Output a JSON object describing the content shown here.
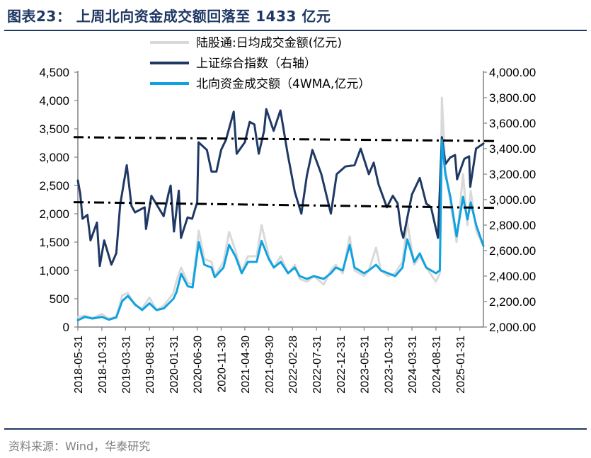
{
  "figure": {
    "title": "图表23：  上周北向资金成交额回落至 1433 亿元",
    "source": "资料来源：Wind，华泰研究"
  },
  "chart_data": {
    "type": "line",
    "x_tick_labels": [
      "2018-05-31",
      "2018-10-31",
      "2019-03-31",
      "2019-08-31",
      "2020-01-31",
      "2020-06-30",
      "2020-11-30",
      "2021-04-30",
      "2021-09-30",
      "2022-02-28",
      "2022-07-31",
      "2022-12-31",
      "2023-05-31",
      "2023-10-31",
      "2024-03-31",
      "2024-08-31",
      "2025-01-31"
    ],
    "x_range": [
      "2018-05-31",
      "2025-06-30"
    ],
    "y_left": {
      "range": [
        0,
        4500
      ],
      "tick_labels": [
        "0",
        "500",
        "1,000",
        "1,500",
        "2,000",
        "2,500",
        "3,000",
        "3,500",
        "4,000",
        "4,500"
      ]
    },
    "y_right": {
      "range": [
        2000,
        4000
      ],
      "tick_labels": [
        "2,000.00",
        "2,200.00",
        "2,400.00",
        "2,600.00",
        "2,800.00",
        "3,000.00",
        "3,200.00",
        "3,400.00",
        "3,600.00",
        "3,800.00",
        "4,000.00"
      ]
    },
    "legend_position": "top-right",
    "grid": false,
    "series": [
      {
        "name": "陆股通:日均成交金额(亿元)",
        "axis": "left",
        "color": "#d9d9d9",
        "width": 3,
        "points": [
          [
            "2018-05-31",
            180
          ],
          [
            "2018-07-15",
            200
          ],
          [
            "2018-09-01",
            160
          ],
          [
            "2018-10-31",
            230
          ],
          [
            "2018-12-15",
            150
          ],
          [
            "2019-01-31",
            180
          ],
          [
            "2019-03-10",
            560
          ],
          [
            "2019-04-15",
            600
          ],
          [
            "2019-05-31",
            380
          ],
          [
            "2019-07-15",
            330
          ],
          [
            "2019-08-31",
            520
          ],
          [
            "2019-10-15",
            300
          ],
          [
            "2019-12-01",
            380
          ],
          [
            "2020-01-31",
            600
          ],
          [
            "2020-02-20",
            820
          ],
          [
            "2020-03-20",
            1050
          ],
          [
            "2020-05-01",
            780
          ],
          [
            "2020-06-01",
            750
          ],
          [
            "2020-07-10",
            1700
          ],
          [
            "2020-08-15",
            1200
          ],
          [
            "2020-09-30",
            1150
          ],
          [
            "2020-10-20",
            900
          ],
          [
            "2020-12-15",
            1150
          ],
          [
            "2021-01-20",
            1680
          ],
          [
            "2021-03-01",
            1350
          ],
          [
            "2021-04-10",
            980
          ],
          [
            "2021-05-20",
            1250
          ],
          [
            "2021-07-15",
            1250
          ],
          [
            "2021-08-15",
            1800
          ],
          [
            "2021-09-30",
            1250
          ],
          [
            "2021-11-01",
            1050
          ],
          [
            "2021-12-15",
            1250
          ],
          [
            "2022-01-31",
            950
          ],
          [
            "2022-03-15",
            1100
          ],
          [
            "2022-04-15",
            850
          ],
          [
            "2022-05-31",
            800
          ],
          [
            "2022-07-15",
            900
          ],
          [
            "2022-09-15",
            750
          ],
          [
            "2022-10-31",
            1000
          ],
          [
            "2022-12-01",
            1100
          ],
          [
            "2023-01-15",
            950
          ],
          [
            "2023-02-28",
            1600
          ],
          [
            "2023-03-31",
            1000
          ],
          [
            "2023-05-31",
            900
          ],
          [
            "2023-06-30",
            1000
          ],
          [
            "2023-08-15",
            1400
          ],
          [
            "2023-09-15",
            1000
          ],
          [
            "2023-10-31",
            900
          ],
          [
            "2023-12-15",
            950
          ],
          [
            "2024-01-31",
            1150
          ],
          [
            "2024-03-01",
            1850
          ],
          [
            "2024-04-15",
            1100
          ],
          [
            "2024-05-20",
            1250
          ],
          [
            "2024-06-30",
            1050
          ],
          [
            "2024-08-31",
            800
          ],
          [
            "2024-09-25",
            950
          ],
          [
            "2024-10-08",
            4050
          ],
          [
            "2024-10-30",
            2800
          ],
          [
            "2024-12-01",
            2200
          ],
          [
            "2025-01-10",
            1500
          ],
          [
            "2025-02-20",
            2700
          ],
          [
            "2025-03-20",
            1800
          ],
          [
            "2025-04-10",
            2400
          ],
          [
            "2025-05-15",
            1700
          ],
          [
            "2025-06-30",
            1433
          ]
        ]
      },
      {
        "name": "上证综合指数（右轴）",
        "axis": "right",
        "color": "#1f3864",
        "width": 3,
        "points": [
          [
            "2018-05-31",
            3150
          ],
          [
            "2018-06-15",
            3050
          ],
          [
            "2018-06-30",
            2850
          ],
          [
            "2018-07-31",
            2880
          ],
          [
            "2018-08-20",
            2680
          ],
          [
            "2018-09-30",
            2820
          ],
          [
            "2018-10-18",
            2480
          ],
          [
            "2018-11-15",
            2680
          ],
          [
            "2018-12-31",
            2490
          ],
          [
            "2019-01-31",
            2580
          ],
          [
            "2019-02-25",
            2960
          ],
          [
            "2019-04-08",
            3270
          ],
          [
            "2019-05-08",
            2950
          ],
          [
            "2019-05-31",
            2900
          ],
          [
            "2019-07-31",
            2940
          ],
          [
            "2019-08-09",
            2770
          ],
          [
            "2019-09-12",
            3030
          ],
          [
            "2019-10-31",
            2930
          ],
          [
            "2019-11-29",
            2870
          ],
          [
            "2019-12-31",
            3050
          ],
          [
            "2020-01-13",
            3110
          ],
          [
            "2020-02-03",
            2750
          ],
          [
            "2020-03-05",
            3070
          ],
          [
            "2020-03-19",
            2700
          ],
          [
            "2020-04-30",
            2860
          ],
          [
            "2020-05-29",
            2850
          ],
          [
            "2020-06-30",
            2980
          ],
          [
            "2020-07-09",
            3450
          ],
          [
            "2020-08-31",
            3390
          ],
          [
            "2020-09-30",
            3220
          ],
          [
            "2020-10-31",
            3220
          ],
          [
            "2020-11-30",
            3390
          ],
          [
            "2020-12-31",
            3470
          ],
          [
            "2021-02-18",
            3690
          ],
          [
            "2021-03-09",
            3360
          ],
          [
            "2021-04-30",
            3450
          ],
          [
            "2021-05-31",
            3610
          ],
          [
            "2021-06-30",
            3590
          ],
          [
            "2021-07-28",
            3360
          ],
          [
            "2021-08-31",
            3540
          ],
          [
            "2021-09-14",
            3710
          ],
          [
            "2021-10-31",
            3540
          ],
          [
            "2021-12-13",
            3700
          ],
          [
            "2022-01-28",
            3360
          ],
          [
            "2022-03-15",
            3060
          ],
          [
            "2022-04-26",
            2890
          ],
          [
            "2022-05-31",
            3190
          ],
          [
            "2022-07-05",
            3390
          ],
          [
            "2022-08-31",
            3200
          ],
          [
            "2022-10-31",
            2890
          ],
          [
            "2022-12-07",
            3200
          ],
          [
            "2023-01-31",
            3260
          ],
          [
            "2023-03-31",
            3270
          ],
          [
            "2023-05-09",
            3400
          ],
          [
            "2023-06-30",
            3200
          ],
          [
            "2023-07-31",
            3290
          ],
          [
            "2023-08-31",
            3120
          ],
          [
            "2023-10-23",
            2940
          ],
          [
            "2023-11-30",
            3030
          ],
          [
            "2023-12-31",
            2970
          ],
          [
            "2024-01-22",
            2760
          ],
          [
            "2024-02-05",
            2700
          ],
          [
            "2024-03-31",
            3040
          ],
          [
            "2024-05-20",
            3170
          ],
          [
            "2024-06-30",
            2970
          ],
          [
            "2024-07-31",
            2940
          ],
          [
            "2024-09-13",
            2700
          ],
          [
            "2024-10-08",
            3490
          ],
          [
            "2024-10-31",
            3280
          ],
          [
            "2024-11-30",
            3330
          ],
          [
            "2024-12-31",
            3350
          ],
          [
            "2025-01-13",
            3160
          ],
          [
            "2025-02-28",
            3320
          ],
          [
            "2025-03-31",
            3340
          ],
          [
            "2025-04-07",
            3100
          ],
          [
            "2025-05-14",
            3400
          ],
          [
            "2025-06-30",
            3440
          ]
        ]
      },
      {
        "name": "北向资金成交额（4WMA,亿元）",
        "axis": "left",
        "color": "#0fa2e0",
        "width": 3,
        "points": [
          [
            "2018-05-31",
            120
          ],
          [
            "2018-07-15",
            180
          ],
          [
            "2018-09-01",
            150
          ],
          [
            "2018-10-31",
            180
          ],
          [
            "2018-12-15",
            130
          ],
          [
            "2019-01-31",
            170
          ],
          [
            "2019-03-10",
            460
          ],
          [
            "2019-04-15",
            550
          ],
          [
            "2019-05-31",
            400
          ],
          [
            "2019-07-15",
            300
          ],
          [
            "2019-08-31",
            420
          ],
          [
            "2019-10-15",
            300
          ],
          [
            "2019-12-01",
            330
          ],
          [
            "2020-01-31",
            500
          ],
          [
            "2020-02-20",
            620
          ],
          [
            "2020-03-20",
            940
          ],
          [
            "2020-05-01",
            720
          ],
          [
            "2020-06-01",
            700
          ],
          [
            "2020-07-10",
            1500
          ],
          [
            "2020-08-15",
            1100
          ],
          [
            "2020-09-30",
            1050
          ],
          [
            "2020-10-20",
            880
          ],
          [
            "2020-12-15",
            1050
          ],
          [
            "2021-01-20",
            1450
          ],
          [
            "2021-03-01",
            1250
          ],
          [
            "2021-04-10",
            950
          ],
          [
            "2021-05-20",
            1150
          ],
          [
            "2021-07-15",
            1150
          ],
          [
            "2021-08-15",
            1520
          ],
          [
            "2021-09-30",
            1200
          ],
          [
            "2021-11-01",
            1050
          ],
          [
            "2021-12-15",
            1150
          ],
          [
            "2022-01-31",
            950
          ],
          [
            "2022-03-15",
            1050
          ],
          [
            "2022-04-15",
            900
          ],
          [
            "2022-05-31",
            850
          ],
          [
            "2022-07-15",
            900
          ],
          [
            "2022-09-15",
            850
          ],
          [
            "2022-10-31",
            950
          ],
          [
            "2022-12-01",
            1050
          ],
          [
            "2023-01-15",
            1000
          ],
          [
            "2023-02-28",
            1450
          ],
          [
            "2023-03-31",
            1050
          ],
          [
            "2023-05-31",
            950
          ],
          [
            "2023-06-30",
            1000
          ],
          [
            "2023-08-15",
            1100
          ],
          [
            "2023-09-15",
            1000
          ],
          [
            "2023-10-31",
            950
          ],
          [
            "2023-12-15",
            900
          ],
          [
            "2024-01-31",
            1050
          ],
          [
            "2024-03-01",
            1550
          ],
          [
            "2024-04-15",
            1150
          ],
          [
            "2024-05-20",
            1300
          ],
          [
            "2024-06-30",
            1050
          ],
          [
            "2024-08-31",
            950
          ],
          [
            "2024-09-25",
            1000
          ],
          [
            "2024-10-08",
            3300
          ],
          [
            "2024-10-30",
            2700
          ],
          [
            "2024-12-01",
            2300
          ],
          [
            "2025-01-10",
            1600
          ],
          [
            "2025-02-20",
            2300
          ],
          [
            "2025-03-20",
            1900
          ],
          [
            "2025-04-10",
            2200
          ],
          [
            "2025-05-15",
            1800
          ],
          [
            "2025-06-30",
            1433
          ]
        ]
      }
    ],
    "reference_lines": [
      {
        "axis": "right",
        "from": [
          "2018-05-31",
          3490
        ],
        "to": [
          "2025-06-30",
          3460
        ],
        "color": "#000000",
        "style": "dash-dot"
      },
      {
        "axis": "right",
        "from": [
          "2018-05-31",
          2980
        ],
        "to": [
          "2025-06-30",
          2935
        ],
        "color": "#000000",
        "style": "dash-dot"
      }
    ]
  }
}
